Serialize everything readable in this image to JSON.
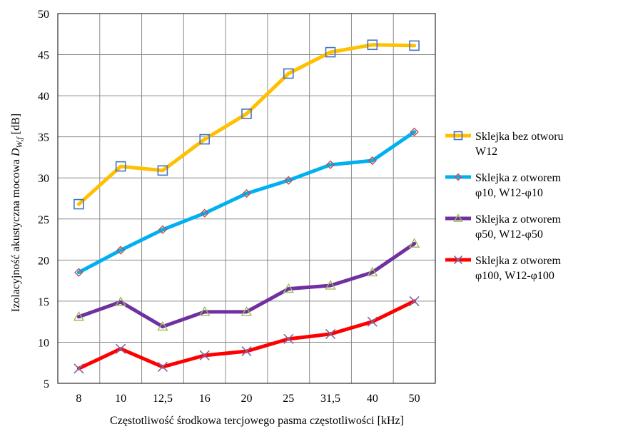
{
  "chart_data": {
    "type": "line",
    "categories": [
      "8",
      "10",
      "12,5",
      "16",
      "20",
      "25",
      "31,5",
      "40",
      "50"
    ],
    "ylim": [
      5,
      50
    ],
    "yticks": [
      5,
      10,
      15,
      20,
      25,
      30,
      35,
      40,
      45,
      50
    ],
    "grid": true,
    "legend_position": "right",
    "xlabel": "Częstotliwość środkowa tercjowego pasma częstotliwości [kHz]",
    "ylabel": {
      "main": "Izolacyjność akustyczna mocowa ",
      "symbol": "D",
      "subscript": "W,f",
      "unit": " [dB]"
    },
    "series": [
      {
        "name": "Sklejka bez otworu W12",
        "legend_lines": [
          "Sklejka bez otworu",
          "W12"
        ],
        "color": "#FFC000",
        "marker": "square",
        "marker_color": "#4472C4",
        "values": [
          26.8,
          31.4,
          30.9,
          34.7,
          37.8,
          42.7,
          45.3,
          46.2,
          46.1
        ]
      },
      {
        "name": "Sklejka z otworem φ10, W12-φ10",
        "legend_lines": [
          "Sklejka z otworem",
          "φ10,  W12-φ10"
        ],
        "color": "#00B0F0",
        "marker": "diamond",
        "marker_color": "#C0504D",
        "values": [
          18.5,
          21.2,
          23.7,
          25.7,
          28.1,
          29.7,
          31.6,
          32.1,
          35.6
        ]
      },
      {
        "name": "Sklejka z otworem φ50, W12-φ50",
        "legend_lines": [
          "Sklejka z otworem",
          "φ50,  W12-φ50"
        ],
        "color": "#7030A0",
        "marker": "triangle",
        "marker_color": "#9BBB59",
        "values": [
          13.1,
          14.9,
          11.9,
          13.7,
          13.7,
          16.5,
          16.9,
          18.5,
          22.0
        ]
      },
      {
        "name": "Sklejka z otworem φ100, W12-φ100",
        "legend_lines": [
          "Sklejka z otworem",
          "φ100,  W12-φ100"
        ],
        "color": "#FF0000",
        "marker": "x",
        "marker_color": "#8064A2",
        "values": [
          6.8,
          9.2,
          7.0,
          8.4,
          8.9,
          10.4,
          11.0,
          12.5,
          15.0
        ]
      }
    ]
  }
}
